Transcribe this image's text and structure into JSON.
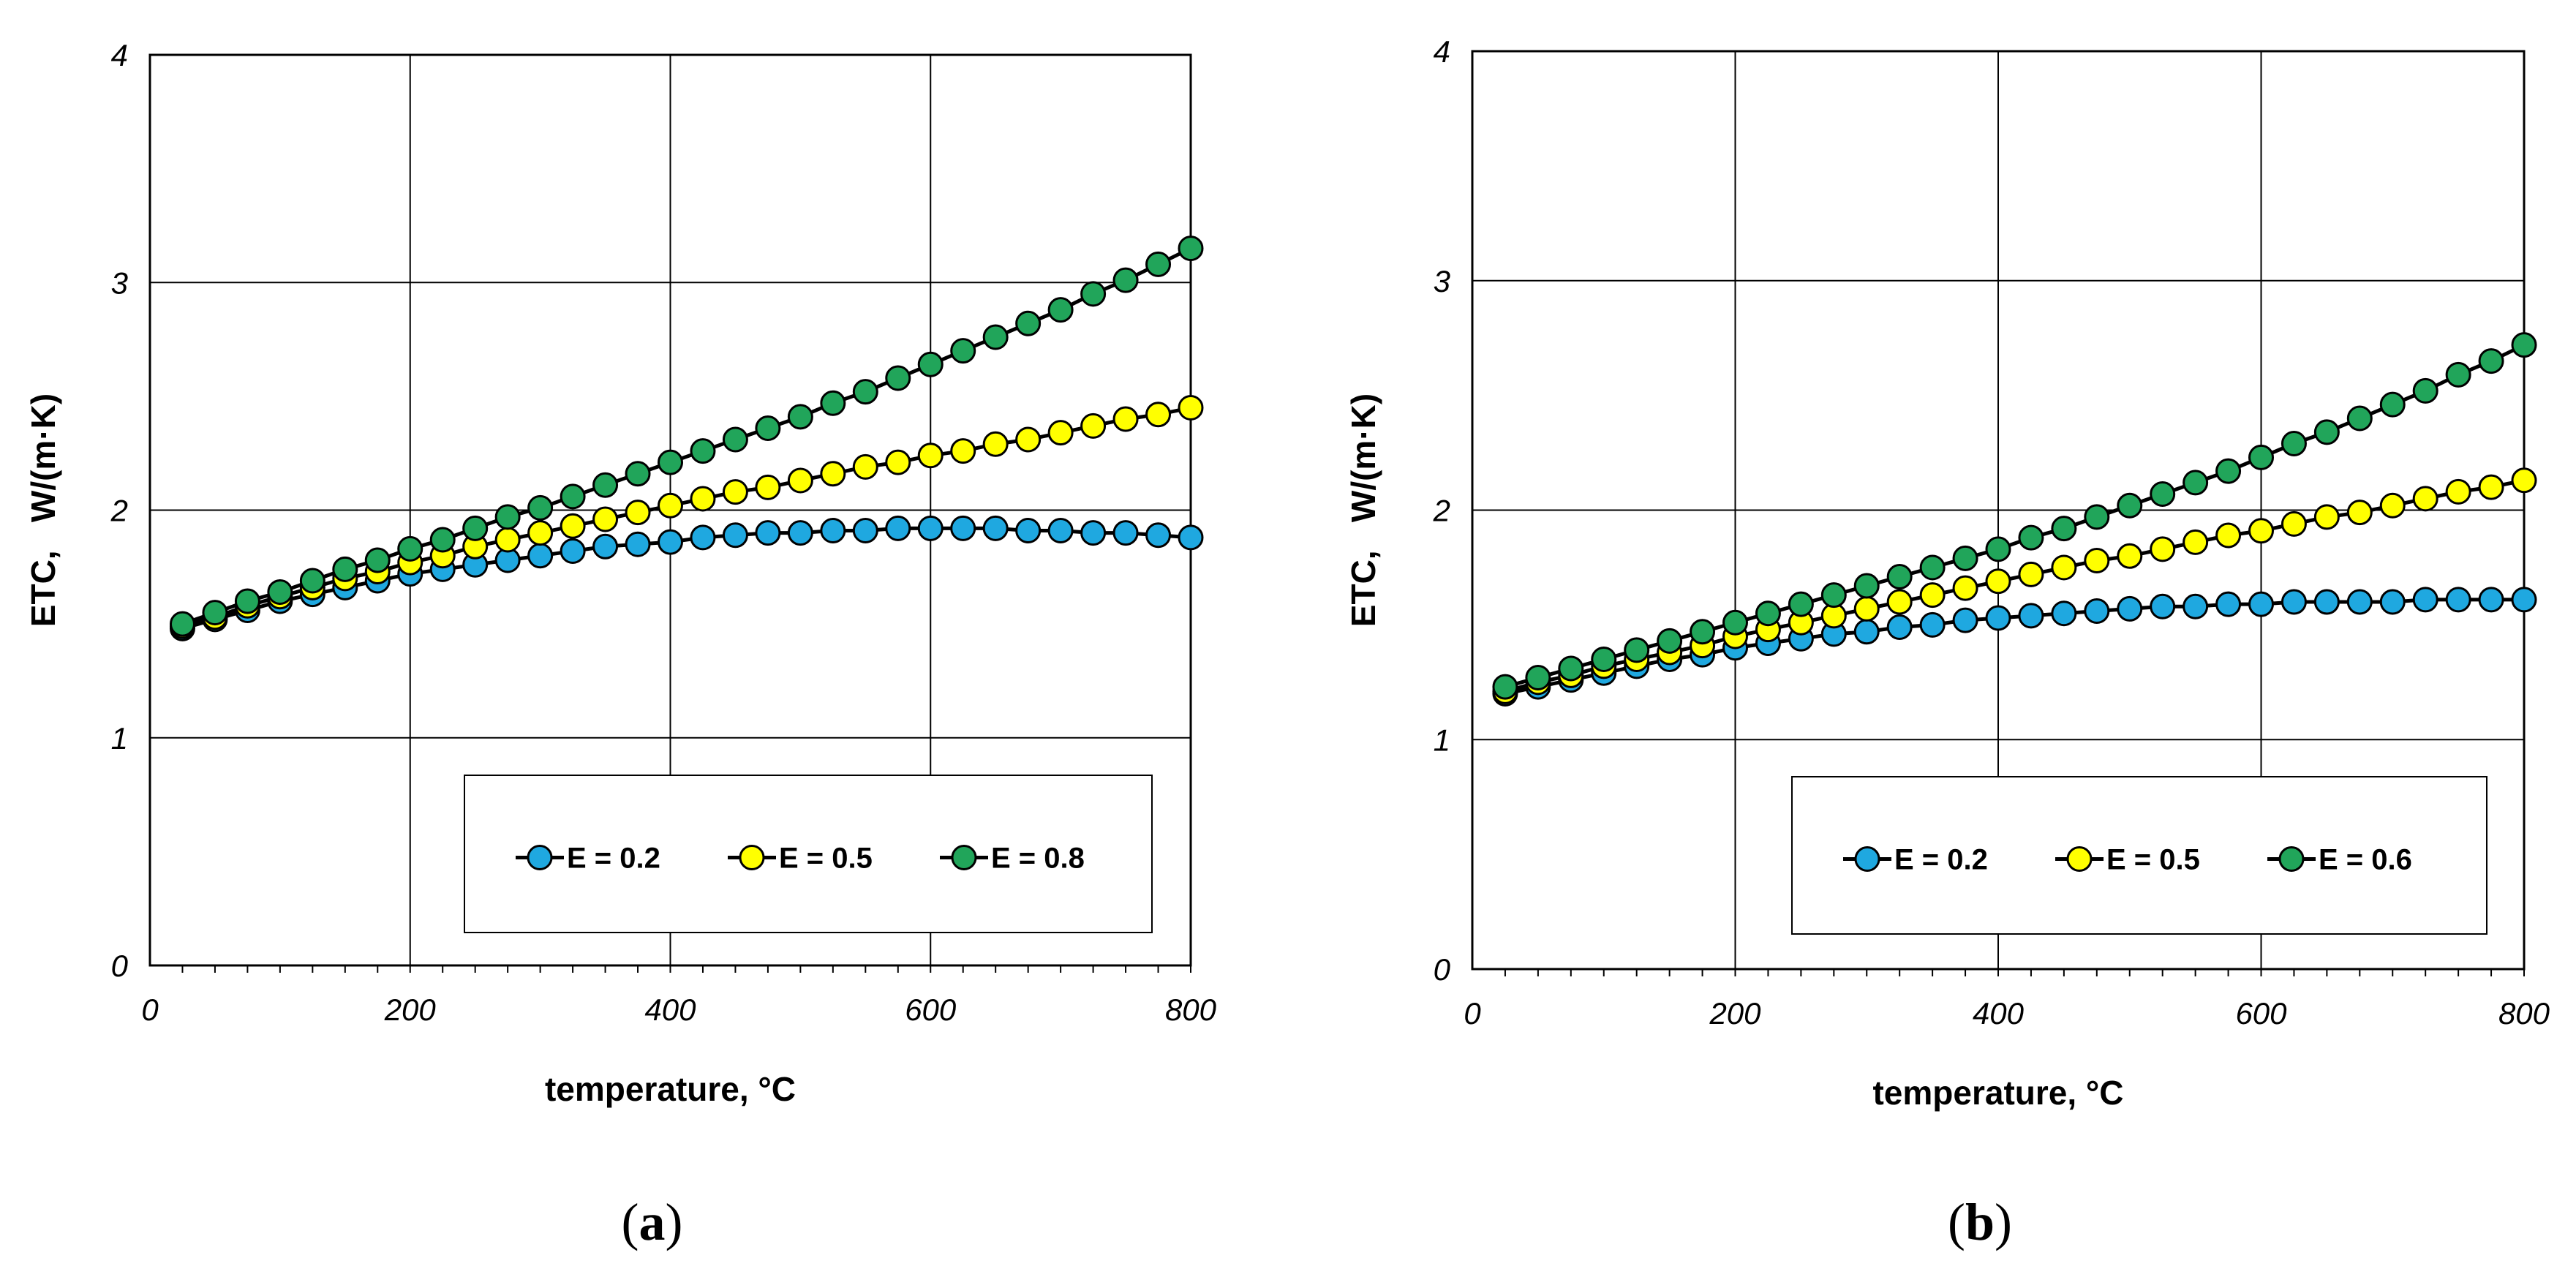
{
  "chart_data": [
    {
      "type": "line",
      "panel_label": "a",
      "xlabel": "temperature, °C",
      "ylabel": "ETC,   W/(m·K)",
      "xlim": [
        0,
        800
      ],
      "ylim": [
        0,
        4
      ],
      "xticks": [
        "0",
        "200",
        "400",
        "600",
        "800"
      ],
      "yticks": [
        "0",
        "1",
        "2",
        "3",
        "4"
      ],
      "grid": true,
      "legend_position": "bottom-right",
      "x": [
        25,
        50,
        75,
        100,
        125,
        150,
        175,
        200,
        225,
        250,
        275,
        300,
        325,
        350,
        375,
        400,
        425,
        450,
        475,
        500,
        525,
        550,
        575,
        600,
        625,
        650,
        675,
        700,
        725,
        750,
        775,
        800
      ],
      "series": [
        {
          "name": "E = 0.2",
          "color": "#1fa8e0",
          "values": [
            1.48,
            1.52,
            1.56,
            1.6,
            1.63,
            1.66,
            1.69,
            1.72,
            1.74,
            1.76,
            1.78,
            1.8,
            1.82,
            1.84,
            1.85,
            1.86,
            1.88,
            1.89,
            1.9,
            1.9,
            1.91,
            1.91,
            1.92,
            1.92,
            1.92,
            1.92,
            1.91,
            1.91,
            1.9,
            1.9,
            1.89,
            1.88
          ]
        },
        {
          "name": "E = 0.5",
          "color": "#ffff00",
          "values": [
            1.49,
            1.53,
            1.58,
            1.62,
            1.66,
            1.7,
            1.73,
            1.77,
            1.8,
            1.84,
            1.87,
            1.9,
            1.93,
            1.96,
            1.99,
            2.02,
            2.05,
            2.08,
            2.1,
            2.13,
            2.16,
            2.19,
            2.21,
            2.24,
            2.26,
            2.29,
            2.31,
            2.34,
            2.37,
            2.4,
            2.42,
            2.45
          ]
        },
        {
          "name": "E = 0.8",
          "color": "#21a55a",
          "values": [
            1.5,
            1.55,
            1.6,
            1.64,
            1.69,
            1.74,
            1.78,
            1.83,
            1.87,
            1.92,
            1.97,
            2.01,
            2.06,
            2.11,
            2.16,
            2.21,
            2.26,
            2.31,
            2.36,
            2.41,
            2.47,
            2.52,
            2.58,
            2.64,
            2.7,
            2.76,
            2.82,
            2.88,
            2.95,
            3.01,
            3.08,
            3.15
          ]
        }
      ]
    },
    {
      "type": "line",
      "panel_label": "b",
      "xlabel": "temperature, °C",
      "ylabel": "ETC,   W/(m·K)",
      "xlim": [
        0,
        800
      ],
      "ylim": [
        0,
        4
      ],
      "xticks": [
        "0",
        "200",
        "400",
        "600",
        "800"
      ],
      "yticks": [
        "0",
        "1",
        "2",
        "3",
        "4"
      ],
      "grid": true,
      "legend_position": "bottom-right",
      "x": [
        25,
        50,
        75,
        100,
        125,
        150,
        175,
        200,
        225,
        250,
        275,
        300,
        325,
        350,
        375,
        400,
        425,
        450,
        475,
        500,
        525,
        550,
        575,
        600,
        625,
        650,
        675,
        700,
        725,
        750,
        775,
        800
      ],
      "series": [
        {
          "name": "E = 0.2",
          "color": "#1fa8e0",
          "values": [
            1.2,
            1.23,
            1.26,
            1.29,
            1.32,
            1.35,
            1.37,
            1.4,
            1.42,
            1.44,
            1.46,
            1.47,
            1.49,
            1.5,
            1.52,
            1.53,
            1.54,
            1.55,
            1.56,
            1.57,
            1.58,
            1.58,
            1.59,
            1.59,
            1.6,
            1.6,
            1.6,
            1.6,
            1.61,
            1.61,
            1.61,
            1.61
          ]
        },
        {
          "name": "E = 0.5",
          "color": "#ffff00",
          "values": [
            1.21,
            1.25,
            1.28,
            1.32,
            1.35,
            1.38,
            1.41,
            1.45,
            1.48,
            1.51,
            1.54,
            1.57,
            1.6,
            1.63,
            1.66,
            1.69,
            1.72,
            1.75,
            1.78,
            1.8,
            1.83,
            1.86,
            1.89,
            1.91,
            1.94,
            1.97,
            1.99,
            2.02,
            2.05,
            2.08,
            2.1,
            2.13
          ]
        },
        {
          "name": "E = 0.6",
          "color": "#21a55a",
          "values": [
            1.23,
            1.27,
            1.31,
            1.35,
            1.39,
            1.43,
            1.47,
            1.51,
            1.55,
            1.59,
            1.63,
            1.67,
            1.71,
            1.75,
            1.79,
            1.83,
            1.88,
            1.92,
            1.97,
            2.02,
            2.07,
            2.12,
            2.17,
            2.23,
            2.29,
            2.34,
            2.4,
            2.46,
            2.52,
            2.59,
            2.65,
            2.72
          ]
        }
      ]
    }
  ]
}
